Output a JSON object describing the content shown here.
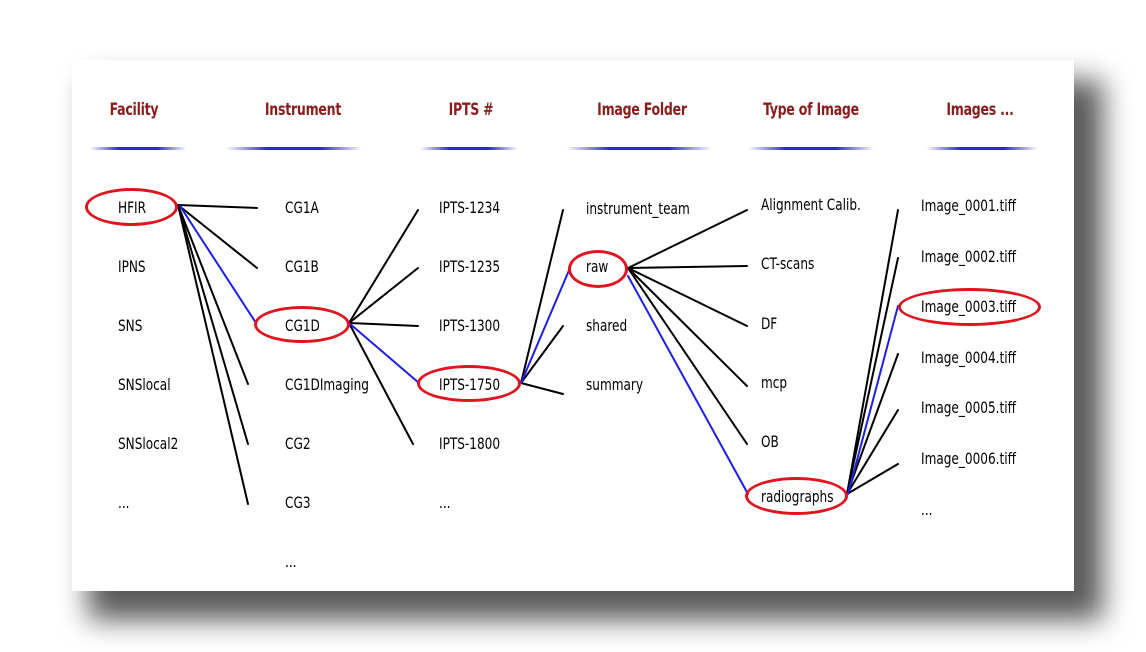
{
  "headers": {
    "facility": "Facility",
    "instrument": "Instrument",
    "ipts": "IPTS #",
    "image_folder": "Image Folder",
    "type_of_image": "Type of Image",
    "images": "Images ..."
  },
  "facilities": [
    "HFIR",
    "IPNS",
    "SNS",
    "SNSlocal",
    "SNSlocal2",
    "..."
  ],
  "instruments": [
    "CG1A",
    "CG1B",
    "CG1D",
    "CG1DImaging",
    "CG2",
    "CG3",
    "..."
  ],
  "ipts": [
    "IPTS-1234",
    "IPTS-1235",
    "IPTS-1300",
    "IPTS-1750",
    "IPTS-1800",
    "..."
  ],
  "image_folders": [
    "instrument_team",
    "raw",
    "shared",
    "summary"
  ],
  "image_types": [
    "Alignment Calib.",
    "CT-scans",
    "DF",
    "mcp",
    "OB",
    "radiographs"
  ],
  "images": [
    "Image_0001.tiff",
    "Image_0002.tiff",
    "Image_0003.tiff",
    "Image_0004.tiff",
    "Image_0005.tiff",
    "Image_0006.tiff",
    "..."
  ],
  "selected_path": [
    "HFIR",
    "CG1D",
    "IPTS-1750",
    "raw",
    "radiographs",
    "Image_0003.tiff"
  ],
  "colors": {
    "header_text": "#8a1c1c",
    "header_rule": "#2a2ad0",
    "selection_ring": "#e0141e",
    "selected_link": "#1e1ee6",
    "link": "#000000"
  }
}
